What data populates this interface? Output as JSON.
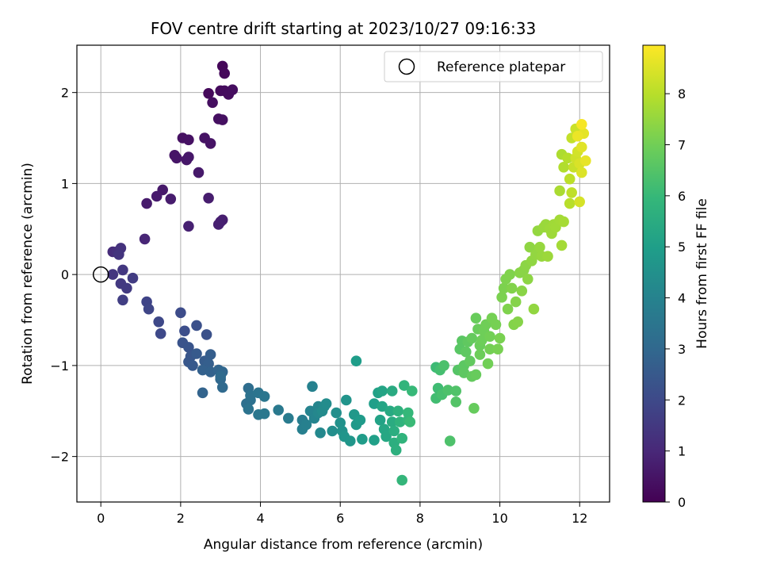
{
  "chart_data": {
    "type": "scatter",
    "title": "FOV centre drift starting at 2023/10/27 09:16:33",
    "xlabel": "Angular distance from reference (arcmin)",
    "ylabel": "Rotation from reference (arcmin)",
    "xlim": [
      -0.6,
      12.75
    ],
    "ylim": [
      -2.5,
      2.52
    ],
    "xticks": [
      0,
      2,
      4,
      6,
      8,
      10,
      12
    ],
    "yticks": [
      -2,
      -1,
      0,
      1,
      2
    ],
    "grid": true,
    "legend": {
      "location": "upper right",
      "entries": [
        "Reference platepar"
      ]
    },
    "reference_point": {
      "x": 0,
      "y": 0,
      "label": "Reference platepar"
    },
    "colorbar": {
      "label": "Hours from first FF file",
      "colormap": "viridis",
      "range": [
        0,
        8.95
      ],
      "ticks": [
        0,
        1,
        2,
        3,
        4,
        5,
        6,
        7,
        8
      ]
    },
    "colormap_stops": [
      "#440154",
      "#482878",
      "#3e4989",
      "#31688e",
      "#26828e",
      "#1f9e89",
      "#35b779",
      "#6ece58",
      "#b5de2b",
      "#fde725"
    ],
    "series": [
      {
        "color_field": "hours",
        "points": [
          [
            3.05,
            2.29,
            0.15
          ],
          [
            3.1,
            2.21,
            0.18
          ],
          [
            2.7,
            1.99,
            0.2
          ],
          [
            3.0,
            2.02,
            0.22
          ],
          [
            3.1,
            2.02,
            0.25
          ],
          [
            3.2,
            1.98,
            0.27
          ],
          [
            3.3,
            2.03,
            0.3
          ],
          [
            2.8,
            1.89,
            0.32
          ],
          [
            2.95,
            1.71,
            0.35
          ],
          [
            3.05,
            1.7,
            0.37
          ],
          [
            2.05,
            1.5,
            0.4
          ],
          [
            2.2,
            1.48,
            0.42
          ],
          [
            2.6,
            1.5,
            0.45
          ],
          [
            2.75,
            1.44,
            0.47
          ],
          [
            1.85,
            1.31,
            0.5
          ],
          [
            1.9,
            1.28,
            0.52
          ],
          [
            2.15,
            1.26,
            0.55
          ],
          [
            2.2,
            1.29,
            0.57
          ],
          [
            2.45,
            1.12,
            0.6
          ],
          [
            1.55,
            0.93,
            0.62
          ],
          [
            1.4,
            0.86,
            0.65
          ],
          [
            1.15,
            0.78,
            0.67
          ],
          [
            1.75,
            0.83,
            0.7
          ],
          [
            2.7,
            0.84,
            0.72
          ],
          [
            3.05,
            0.6,
            0.75
          ],
          [
            3.0,
            0.58,
            0.77
          ],
          [
            2.95,
            0.55,
            0.8
          ],
          [
            2.2,
            0.53,
            0.82
          ],
          [
            1.1,
            0.39,
            0.95
          ],
          [
            0.3,
            0.25,
            1.1
          ],
          [
            0.4,
            0.25,
            1.2
          ],
          [
            0.5,
            0.29,
            1.3
          ],
          [
            0.45,
            0.22,
            1.35
          ],
          [
            0.3,
            0.0,
            1.4
          ],
          [
            0.55,
            0.05,
            1.45
          ],
          [
            0.5,
            -0.1,
            1.5
          ],
          [
            0.65,
            -0.15,
            1.55
          ],
          [
            0.8,
            -0.04,
            1.6
          ],
          [
            0.55,
            -0.28,
            1.65
          ],
          [
            1.15,
            -0.3,
            1.85
          ],
          [
            1.2,
            -0.38,
            1.9
          ],
          [
            1.45,
            -0.52,
            1.95
          ],
          [
            1.5,
            -0.65,
            2.0
          ],
          [
            2.0,
            -0.42,
            2.1
          ],
          [
            2.1,
            -0.62,
            2.15
          ],
          [
            2.4,
            -0.56,
            2.2
          ],
          [
            2.65,
            -0.66,
            2.25
          ],
          [
            2.05,
            -0.75,
            2.3
          ],
          [
            2.2,
            -0.8,
            2.35
          ],
          [
            2.25,
            -0.9,
            2.4
          ],
          [
            2.2,
            -0.96,
            2.45
          ],
          [
            2.3,
            -1.0,
            2.5
          ],
          [
            2.4,
            -0.87,
            2.55
          ],
          [
            2.6,
            -0.95,
            2.6
          ],
          [
            2.75,
            -0.88,
            2.65
          ],
          [
            2.7,
            -0.98,
            2.7
          ],
          [
            2.55,
            -1.05,
            2.75
          ],
          [
            2.75,
            -1.07,
            2.8
          ],
          [
            2.55,
            -1.3,
            2.85
          ],
          [
            2.95,
            -1.05,
            2.9
          ],
          [
            3.05,
            -1.07,
            2.95
          ],
          [
            3.0,
            -1.15,
            3.0
          ],
          [
            3.05,
            -1.24,
            3.05
          ],
          [
            3.0,
            -1.12,
            3.1
          ],
          [
            3.7,
            -1.25,
            3.2
          ],
          [
            3.65,
            -1.42,
            3.25
          ],
          [
            3.75,
            -1.38,
            3.3
          ],
          [
            3.75,
            -1.33,
            3.35
          ],
          [
            3.7,
            -1.48,
            3.4
          ],
          [
            3.95,
            -1.3,
            3.45
          ],
          [
            4.1,
            -1.34,
            3.5
          ],
          [
            3.95,
            -1.54,
            3.55
          ],
          [
            4.1,
            -1.53,
            3.6
          ],
          [
            4.45,
            -1.49,
            3.65
          ],
          [
            4.7,
            -1.58,
            3.7
          ],
          [
            5.05,
            -1.6,
            3.8
          ],
          [
            5.05,
            -1.7,
            3.85
          ],
          [
            5.15,
            -1.65,
            3.9
          ],
          [
            5.3,
            -1.23,
            3.95
          ],
          [
            5.25,
            -1.5,
            4.0
          ],
          [
            5.35,
            -1.58,
            4.05
          ],
          [
            5.45,
            -1.45,
            4.1
          ],
          [
            5.45,
            -1.52,
            4.15
          ],
          [
            5.5,
            -1.74,
            4.2
          ],
          [
            5.6,
            -1.45,
            4.25
          ],
          [
            5.55,
            -1.5,
            4.3
          ],
          [
            5.65,
            -1.42,
            4.35
          ],
          [
            5.8,
            -1.72,
            4.4
          ],
          [
            5.9,
            -1.52,
            4.45
          ],
          [
            6.0,
            -1.63,
            4.5
          ],
          [
            6.05,
            -1.72,
            4.55
          ],
          [
            6.15,
            -1.38,
            4.6
          ],
          [
            6.1,
            -1.78,
            4.65
          ],
          [
            6.25,
            -1.83,
            4.7
          ],
          [
            6.35,
            -1.54,
            4.75
          ],
          [
            6.4,
            -1.65,
            4.8
          ],
          [
            6.5,
            -1.6,
            4.85
          ],
          [
            6.55,
            -1.81,
            4.9
          ],
          [
            6.4,
            -0.95,
            4.95
          ],
          [
            6.85,
            -1.42,
            5.0
          ],
          [
            6.85,
            -1.82,
            5.05
          ],
          [
            6.95,
            -1.3,
            5.1
          ],
          [
            7.0,
            -1.6,
            5.15
          ],
          [
            7.05,
            -1.28,
            5.2
          ],
          [
            7.05,
            -1.45,
            5.25
          ],
          [
            7.1,
            -1.7,
            5.3
          ],
          [
            7.15,
            -1.78,
            5.35
          ],
          [
            7.25,
            -1.5,
            5.4
          ],
          [
            7.3,
            -1.28,
            5.45
          ],
          [
            7.3,
            -1.62,
            5.5
          ],
          [
            7.35,
            -1.72,
            5.55
          ],
          [
            7.35,
            -1.85,
            5.6
          ],
          [
            7.4,
            -1.93,
            5.65
          ],
          [
            7.45,
            -1.5,
            5.7
          ],
          [
            7.5,
            -1.62,
            5.75
          ],
          [
            7.55,
            -1.8,
            5.8
          ],
          [
            7.6,
            -1.22,
            5.85
          ],
          [
            7.7,
            -1.6,
            5.9
          ],
          [
            7.7,
            -1.52,
            5.95
          ],
          [
            7.8,
            -1.28,
            6.0
          ],
          [
            7.55,
            -2.26,
            5.9
          ],
          [
            7.75,
            -1.62,
            6.05
          ],
          [
            8.4,
            -1.02,
            6.1
          ],
          [
            8.45,
            -1.25,
            6.15
          ],
          [
            8.4,
            -1.36,
            6.2
          ],
          [
            8.5,
            -1.05,
            6.25
          ],
          [
            8.55,
            -1.32,
            6.3
          ],
          [
            8.6,
            -1.0,
            6.35
          ],
          [
            8.7,
            -1.27,
            6.4
          ],
          [
            8.75,
            -1.83,
            6.4
          ],
          [
            8.9,
            -1.28,
            6.45
          ],
          [
            8.9,
            -1.4,
            6.5
          ],
          [
            8.95,
            -1.05,
            6.55
          ],
          [
            9.0,
            -0.82,
            6.6
          ],
          [
            9.05,
            -0.73,
            6.62
          ],
          [
            9.1,
            -1.0,
            6.65
          ],
          [
            9.1,
            -1.08,
            6.68
          ],
          [
            9.15,
            -0.85,
            6.7
          ],
          [
            9.2,
            -0.74,
            6.72
          ],
          [
            9.25,
            -0.95,
            6.75
          ],
          [
            9.3,
            -1.12,
            6.78
          ],
          [
            9.3,
            -0.7,
            6.8
          ],
          [
            9.35,
            -1.47,
            6.82
          ],
          [
            9.4,
            -1.1,
            6.84
          ],
          [
            9.4,
            -0.48,
            6.86
          ],
          [
            9.45,
            -0.6,
            6.88
          ],
          [
            9.5,
            -0.78,
            6.9
          ],
          [
            9.5,
            -0.88,
            6.92
          ],
          [
            9.55,
            -0.72,
            6.94
          ],
          [
            9.6,
            -0.62,
            6.96
          ],
          [
            9.65,
            -0.55,
            6.98
          ],
          [
            9.7,
            -0.98,
            7.0
          ],
          [
            9.75,
            -0.68,
            7.02
          ],
          [
            9.75,
            -0.82,
            7.04
          ],
          [
            9.8,
            -0.48,
            7.06
          ],
          [
            9.9,
            -0.55,
            7.08
          ],
          [
            9.95,
            -0.82,
            7.1
          ],
          [
            10.0,
            -0.7,
            7.12
          ],
          [
            10.05,
            -0.25,
            7.14
          ],
          [
            10.1,
            -0.15,
            7.16
          ],
          [
            10.15,
            -0.05,
            7.18
          ],
          [
            10.2,
            -0.38,
            7.2
          ],
          [
            10.25,
            0.0,
            7.22
          ],
          [
            10.3,
            -0.15,
            7.24
          ],
          [
            10.35,
            -0.55,
            7.26
          ],
          [
            10.4,
            -0.3,
            7.28
          ],
          [
            10.45,
            -0.52,
            7.3
          ],
          [
            10.5,
            0.02,
            7.32
          ],
          [
            10.55,
            -0.18,
            7.34
          ],
          [
            10.6,
            0.05,
            7.36
          ],
          [
            10.65,
            0.1,
            7.38
          ],
          [
            10.7,
            -0.05,
            7.4
          ],
          [
            10.75,
            0.3,
            7.42
          ],
          [
            10.8,
            0.15,
            7.44
          ],
          [
            10.85,
            -0.38,
            7.46
          ],
          [
            10.9,
            0.22,
            7.48
          ],
          [
            10.95,
            0.48,
            7.5
          ],
          [
            11.0,
            0.3,
            7.52
          ],
          [
            11.05,
            0.2,
            7.54
          ],
          [
            11.1,
            0.52,
            7.56
          ],
          [
            11.15,
            0.55,
            7.58
          ],
          [
            11.2,
            0.2,
            7.6
          ],
          [
            11.25,
            0.5,
            7.62
          ],
          [
            11.3,
            0.45,
            7.64
          ],
          [
            11.35,
            0.55,
            7.66
          ],
          [
            11.4,
            0.52,
            7.68
          ],
          [
            11.5,
            0.6,
            7.7
          ],
          [
            11.55,
            0.32,
            7.72
          ],
          [
            11.6,
            0.58,
            7.74
          ],
          [
            11.5,
            0.92,
            7.8
          ],
          [
            11.55,
            1.32,
            7.85
          ],
          [
            11.6,
            1.18,
            7.9
          ],
          [
            11.7,
            1.28,
            7.95
          ],
          [
            11.75,
            0.78,
            8.0
          ],
          [
            11.75,
            1.05,
            8.05
          ],
          [
            11.8,
            0.9,
            8.1
          ],
          [
            11.8,
            1.5,
            8.15
          ],
          [
            11.85,
            1.18,
            8.2
          ],
          [
            11.9,
            1.6,
            8.25
          ],
          [
            11.9,
            1.28,
            8.3
          ],
          [
            11.95,
            1.35,
            8.35
          ],
          [
            12.0,
            0.8,
            8.4
          ],
          [
            12.0,
            1.22,
            8.45
          ],
          [
            12.05,
            1.12,
            8.5
          ],
          [
            12.05,
            1.4,
            8.55
          ],
          [
            12.1,
            1.55,
            8.6
          ],
          [
            12.15,
            1.25,
            8.65
          ],
          [
            11.95,
            1.52,
            8.7
          ],
          [
            12.05,
            1.65,
            8.85
          ]
        ]
      }
    ]
  }
}
